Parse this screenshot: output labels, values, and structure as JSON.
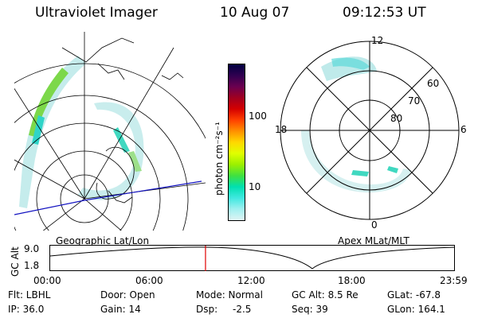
{
  "header": {
    "instrument": "Ultraviolet Imager",
    "date": "10 Aug 07",
    "time": "09:12:53 UT"
  },
  "colorbar": {
    "unit_label": "photon cm⁻²s⁻¹",
    "ticks": [
      "100",
      "10"
    ],
    "colors": [
      "#000040",
      "#300050",
      "#6a0050",
      "#a00020",
      "#d40000",
      "#ff4000",
      "#ff9000",
      "#ffd800",
      "#e0ff00",
      "#9cf000",
      "#40e040",
      "#00e0b0",
      "#40e8e0",
      "#a0f0f0",
      "#e0f4f4"
    ]
  },
  "geo_panel": {
    "caption": "Geographic Lat/Lon"
  },
  "polar_panel": {
    "caption": "Apex MLat/MLT",
    "mlt_labels": {
      "top": "12",
      "bottom": "0",
      "left": "18",
      "right": "6"
    },
    "lat_labels": [
      "60",
      "70",
      "80"
    ]
  },
  "altitude_plot": {
    "ylabel": "GC Alt",
    "ymax_label": "9.0",
    "ymin_label": "1.8",
    "x_ticks": [
      "00:00",
      "06:00",
      "12:00",
      "18:00",
      "23:59"
    ],
    "current_time_hours": 9.21
  },
  "info": {
    "row1": [
      "Flt: LBHL",
      "Door: Open",
      "Mode: Normal",
      "GC Alt: 8.5 Re",
      "GLat: -67.8"
    ],
    "row2": [
      "IP: 36.0",
      "Gain: 14",
      "Dsp:",
      "-2.5",
      "Seq: 39",
      "GLon: 164.1"
    ]
  }
}
